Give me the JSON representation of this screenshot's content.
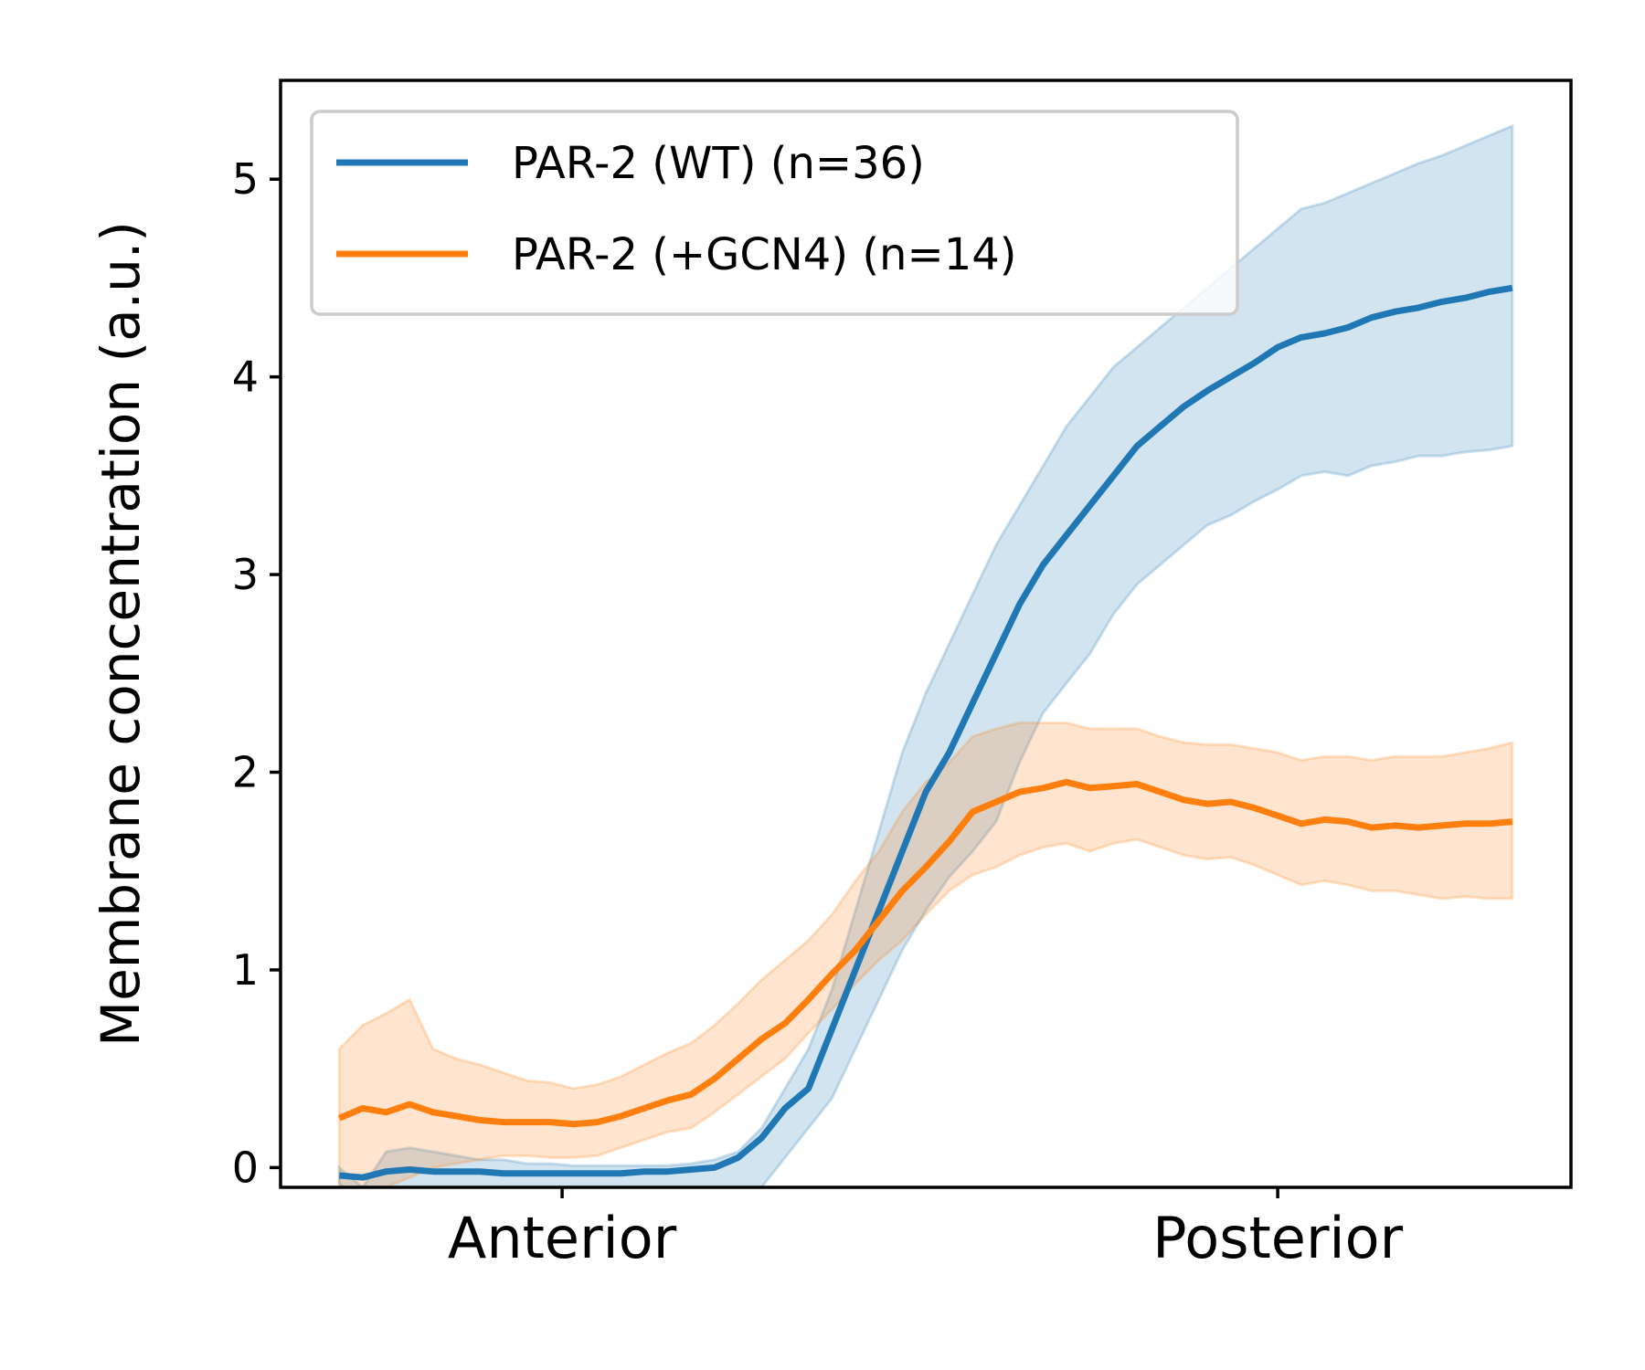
{
  "chart_data": {
    "type": "line",
    "title": "",
    "xlabel": "",
    "ylabel": "Membrane concentration (a.u.)",
    "xlim": [
      -0.05,
      1.05
    ],
    "ylim": [
      -0.1,
      5.5
    ],
    "x_ticks": [
      {
        "value": 0.19,
        "label": "Anterior"
      },
      {
        "value": 0.8,
        "label": "Posterior"
      }
    ],
    "y_ticks": [
      0,
      1,
      2,
      3,
      4,
      5
    ],
    "grid": false,
    "legend": {
      "position": "top-left",
      "entries": [
        "PAR-2 (WT) (n=36)",
        "PAR-2 (+GCN4) (n=14)"
      ]
    },
    "x": [
      0.0,
      0.02,
      0.04,
      0.06,
      0.08,
      0.1,
      0.12,
      0.14,
      0.16,
      0.18,
      0.2,
      0.22,
      0.24,
      0.26,
      0.28,
      0.3,
      0.32,
      0.34,
      0.36,
      0.38,
      0.4,
      0.42,
      0.44,
      0.46,
      0.48,
      0.5,
      0.52,
      0.54,
      0.56,
      0.58,
      0.6,
      0.62,
      0.64,
      0.66,
      0.68,
      0.7,
      0.72,
      0.74,
      0.76,
      0.78,
      0.8,
      0.82,
      0.84,
      0.86,
      0.88,
      0.9,
      0.92,
      0.94,
      0.96,
      0.98,
      1.0
    ],
    "series": [
      {
        "name": "PAR-2 (WT) (n=36)",
        "color": "#1f77b4",
        "values": [
          -0.04,
          -0.05,
          -0.02,
          -0.01,
          -0.02,
          -0.02,
          -0.02,
          -0.03,
          -0.03,
          -0.03,
          -0.03,
          -0.03,
          -0.03,
          -0.02,
          -0.02,
          -0.01,
          0.0,
          0.05,
          0.15,
          0.3,
          0.4,
          0.7,
          1.0,
          1.3,
          1.6,
          1.9,
          2.1,
          2.35,
          2.6,
          2.85,
          3.05,
          3.2,
          3.35,
          3.5,
          3.65,
          3.75,
          3.85,
          3.93,
          4.0,
          4.07,
          4.15,
          4.2,
          4.22,
          4.25,
          4.3,
          4.33,
          4.35,
          4.38,
          4.4,
          4.43,
          4.45
        ],
        "lower": [
          -0.08,
          -0.2,
          -0.2,
          -0.2,
          -0.2,
          -0.2,
          -0.2,
          -0.2,
          -0.2,
          -0.2,
          -0.2,
          -0.2,
          -0.2,
          -0.2,
          -0.2,
          -0.2,
          -0.2,
          -0.2,
          -0.1,
          0.05,
          0.2,
          0.35,
          0.6,
          0.85,
          1.1,
          1.3,
          1.47,
          1.6,
          1.75,
          2.05,
          2.3,
          2.45,
          2.6,
          2.8,
          2.95,
          3.05,
          3.15,
          3.25,
          3.3,
          3.37,
          3.43,
          3.5,
          3.52,
          3.5,
          3.55,
          3.57,
          3.6,
          3.6,
          3.62,
          3.63,
          3.65
        ],
        "upper": [
          0.0,
          -0.1,
          0.08,
          0.1,
          0.08,
          0.06,
          0.04,
          0.04,
          0.02,
          0.02,
          0.01,
          0.01,
          0.01,
          0.01,
          0.01,
          0.02,
          0.04,
          0.08,
          0.2,
          0.4,
          0.6,
          0.9,
          1.3,
          1.7,
          2.1,
          2.4,
          2.65,
          2.9,
          3.15,
          3.35,
          3.55,
          3.75,
          3.9,
          4.05,
          4.15,
          4.25,
          4.35,
          4.45,
          4.55,
          4.65,
          4.75,
          4.85,
          4.88,
          4.93,
          4.98,
          5.03,
          5.08,
          5.12,
          5.17,
          5.22,
          5.27
        ]
      },
      {
        "name": "PAR-2 (+GCN4) (n=14)",
        "color": "#ff7f0e",
        "values": [
          0.25,
          0.3,
          0.28,
          0.32,
          0.28,
          0.26,
          0.24,
          0.23,
          0.23,
          0.23,
          0.22,
          0.23,
          0.26,
          0.3,
          0.34,
          0.37,
          0.45,
          0.55,
          0.65,
          0.73,
          0.85,
          0.98,
          1.1,
          1.25,
          1.4,
          1.52,
          1.65,
          1.8,
          1.85,
          1.9,
          1.92,
          1.95,
          1.92,
          1.93,
          1.94,
          1.9,
          1.86,
          1.84,
          1.85,
          1.82,
          1.78,
          1.74,
          1.76,
          1.75,
          1.72,
          1.73,
          1.72,
          1.73,
          1.74,
          1.74,
          1.75
        ],
        "lower": [
          -0.1,
          -0.1,
          -0.1,
          -0.05,
          0.0,
          0.02,
          0.04,
          0.06,
          0.06,
          0.05,
          0.05,
          0.06,
          0.1,
          0.14,
          0.18,
          0.2,
          0.28,
          0.37,
          0.46,
          0.55,
          0.68,
          0.8,
          0.93,
          1.05,
          1.15,
          1.28,
          1.4,
          1.48,
          1.52,
          1.58,
          1.62,
          1.64,
          1.6,
          1.64,
          1.66,
          1.62,
          1.58,
          1.56,
          1.57,
          1.53,
          1.48,
          1.43,
          1.45,
          1.43,
          1.4,
          1.4,
          1.38,
          1.36,
          1.37,
          1.36,
          1.36
        ],
        "upper": [
          0.6,
          0.72,
          0.78,
          0.85,
          0.6,
          0.55,
          0.52,
          0.48,
          0.44,
          0.43,
          0.4,
          0.42,
          0.46,
          0.52,
          0.58,
          0.63,
          0.72,
          0.83,
          0.95,
          1.05,
          1.15,
          1.28,
          1.45,
          1.6,
          1.8,
          1.95,
          2.05,
          2.18,
          2.22,
          2.25,
          2.25,
          2.25,
          2.22,
          2.22,
          2.22,
          2.18,
          2.15,
          2.14,
          2.14,
          2.12,
          2.1,
          2.06,
          2.08,
          2.08,
          2.06,
          2.08,
          2.08,
          2.08,
          2.1,
          2.12,
          2.15
        ]
      }
    ]
  }
}
